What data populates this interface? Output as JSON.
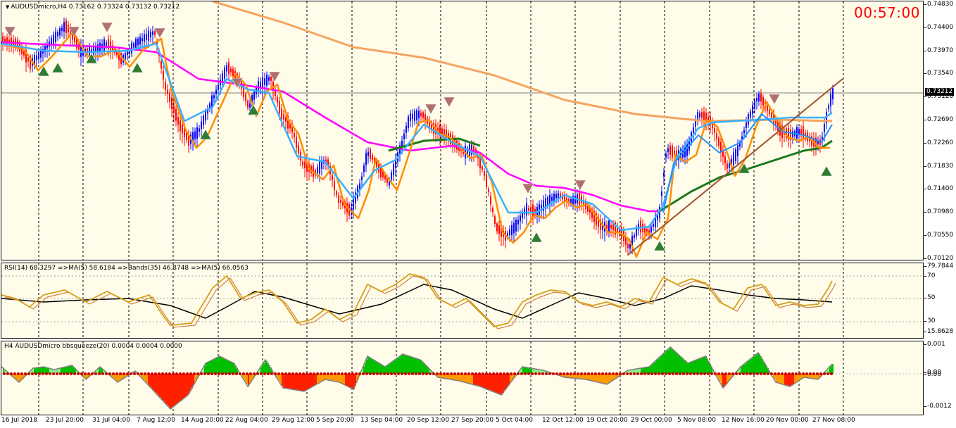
{
  "chart": {
    "symbol_header": "AUDUSDmicro,H4  0.73162 0.73324 0.73132 0.73212",
    "timer": "00:57:00",
    "current_price": "0.73212",
    "price_ticks": [
      "0.74830",
      "0.74400",
      "0.73970",
      "0.73540",
      "0.73120",
      "0.72690",
      "0.72260",
      "0.71830",
      "0.71400",
      "0.70980",
      "0.70550",
      "0.70120"
    ],
    "time_labels": [
      "16 Jul 2018",
      "23 Jul 20:00",
      "31 Jul 04:00",
      "7 Aug 12:00",
      "14 Aug 20:00",
      "22 Aug 04:00",
      "29 Aug 12:00",
      "5 Sep 20:00",
      "13 Sep 04:00",
      "20 Sep 12:00",
      "27 Sep 20:00",
      "5 Oct 04:00",
      "12 Oct 12:00",
      "19 Oct 20:00",
      "29 Oct 00:00",
      "5 Nov 08:00",
      "12 Nov 16:00",
      "20 Nov 00:00",
      "27 Nov 08:00"
    ]
  },
  "rsi": {
    "label": "RSI(14) 68.3297  =>MA(5) 58.6184  =>Bands(35) 46.8748  =>MA(5) 66.0563",
    "axis_labels": [
      "79.7844",
      "70",
      "50",
      "30",
      "15.8628"
    ]
  },
  "bbsqueeze": {
    "label": "H4 AUDUSDmicro bbsqueeze(20) 0.0004 0.0004 0.0000",
    "axis_labels": [
      "0.001",
      "0.00",
      "0.00",
      "-0.0012"
    ]
  },
  "colors": {
    "bull_candle": "#0000ff",
    "bear_candle": "#ff0000",
    "ma_magenta": "#ff00ff",
    "ma_long": "#f4a460",
    "ma_green": "#1a7a1a",
    "ma_orange": "#ff8c00",
    "ma_lightblue": "#1e90ff",
    "trendline": "#a0522d",
    "rsi_main": "#d4a017",
    "rsi_ma": "#000000",
    "bb_green": "#00c000",
    "bb_orange": "#ff9900",
    "bb_red": "#ff2000",
    "timer": "#ff0000"
  }
}
